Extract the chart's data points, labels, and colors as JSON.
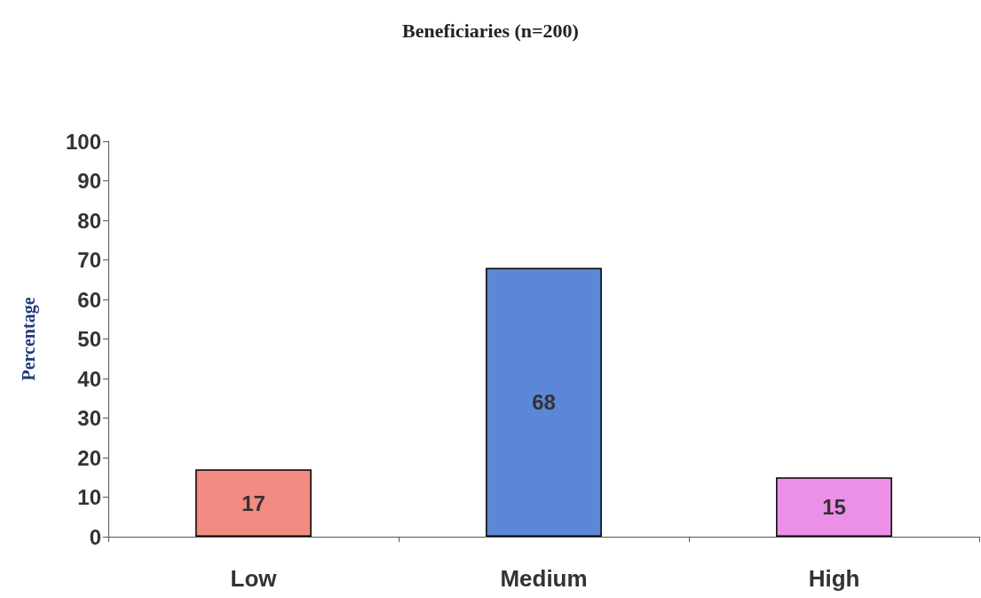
{
  "chart_data": {
    "type": "bar",
    "title": "Beneficiaries (n=200)",
    "ylabel": "Percentage",
    "categories": [
      "Low",
      "Medium",
      "High"
    ],
    "values": [
      17,
      68,
      15
    ],
    "colors": [
      "#f28b82",
      "#5b87d6",
      "#ec8fe6"
    ],
    "ylim": [
      0,
      100
    ],
    "yticks": [
      0,
      10,
      20,
      30,
      40,
      50,
      60,
      70,
      80,
      90,
      100
    ],
    "data_labels": true
  }
}
